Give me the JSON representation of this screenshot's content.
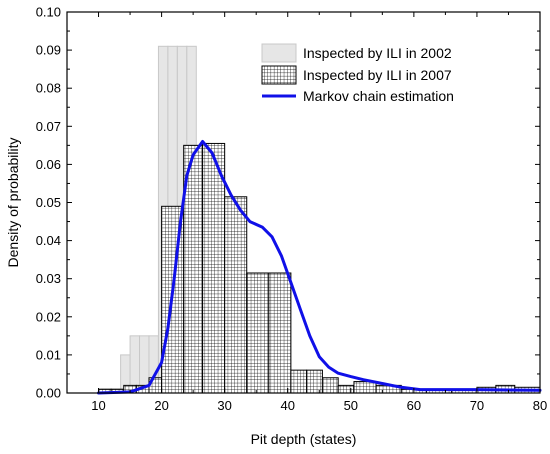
{
  "chart_data": {
    "type": "bar",
    "xlabel": "Pit depth (states)",
    "ylabel": "Density of probability",
    "xlim": [
      5,
      80
    ],
    "ylim": [
      0,
      0.1
    ],
    "x_ticks": [
      10,
      20,
      30,
      40,
      50,
      60,
      70,
      80
    ],
    "y_ticks": [
      0.0,
      0.01,
      0.02,
      0.03,
      0.04,
      0.05,
      0.06,
      0.07,
      0.08,
      0.09,
      0.1
    ],
    "legend_position": "top-right",
    "series": [
      {
        "name": "Inspected by ILI in 2002",
        "style": "light-gray-bars",
        "color": "#e6e6e6",
        "edge_color": "#c8c8c8",
        "bars": [
          {
            "x": 10.5,
            "width": 3.0,
            "value": 0.001
          },
          {
            "x": 13.5,
            "width": 1.5,
            "value": 0.01
          },
          {
            "x": 15.0,
            "width": 1.5,
            "value": 0.015
          },
          {
            "x": 16.5,
            "width": 1.5,
            "value": 0.015
          },
          {
            "x": 18.0,
            "width": 1.5,
            "value": 0.015
          },
          {
            "x": 19.5,
            "width": 1.5,
            "value": 0.091
          },
          {
            "x": 21.0,
            "width": 1.5,
            "value": 0.091
          },
          {
            "x": 22.5,
            "width": 1.5,
            "value": 0.091
          },
          {
            "x": 24.0,
            "width": 1.5,
            "value": 0.091
          }
        ]
      },
      {
        "name": "Inspected by ILI in 2007",
        "style": "hatched-grid-bars",
        "color": "#ffffff",
        "edge_color": "#000000",
        "bars": [
          {
            "x": 10.0,
            "width": 2.0,
            "value": 0.001
          },
          {
            "x": 12.0,
            "width": 2.0,
            "value": 0.001
          },
          {
            "x": 14.0,
            "width": 2.0,
            "value": 0.002
          },
          {
            "x": 16.0,
            "width": 2.0,
            "value": 0.002
          },
          {
            "x": 18.0,
            "width": 2.0,
            "value": 0.004
          },
          {
            "x": 20.0,
            "width": 3.5,
            "value": 0.049
          },
          {
            "x": 23.5,
            "width": 3.0,
            "value": 0.065
          },
          {
            "x": 26.5,
            "width": 3.5,
            "value": 0.0655
          },
          {
            "x": 30.0,
            "width": 3.5,
            "value": 0.0515
          },
          {
            "x": 33.5,
            "width": 3.5,
            "value": 0.0315
          },
          {
            "x": 37.0,
            "width": 3.5,
            "value": 0.0315
          },
          {
            "x": 40.5,
            "width": 2.5,
            "value": 0.006
          },
          {
            "x": 43.0,
            "width": 2.5,
            "value": 0.006
          },
          {
            "x": 45.5,
            "width": 2.5,
            "value": 0.004
          },
          {
            "x": 48.0,
            "width": 2.5,
            "value": 0.002
          },
          {
            "x": 50.5,
            "width": 3.5,
            "value": 0.003
          },
          {
            "x": 54.0,
            "width": 4.0,
            "value": 0.002
          },
          {
            "x": 58.0,
            "width": 4.0,
            "value": 0.001
          },
          {
            "x": 62.0,
            "width": 4.0,
            "value": 0.001
          },
          {
            "x": 66.0,
            "width": 4.0,
            "value": 0.001
          },
          {
            "x": 70.0,
            "width": 3.0,
            "value": 0.0015
          },
          {
            "x": 73.0,
            "width": 3.0,
            "value": 0.002
          },
          {
            "x": 76.0,
            "width": 4.0,
            "value": 0.0015
          }
        ]
      },
      {
        "name": "Markov chain estimation",
        "style": "line",
        "color": "#1010e8",
        "points": [
          [
            10,
            0.0
          ],
          [
            15,
            0.0003
          ],
          [
            18,
            0.002
          ],
          [
            20,
            0.008
          ],
          [
            21,
            0.017
          ],
          [
            22,
            0.03
          ],
          [
            23,
            0.045
          ],
          [
            24,
            0.057
          ],
          [
            25,
            0.0625
          ],
          [
            26.5,
            0.066
          ],
          [
            28,
            0.063
          ],
          [
            29.5,
            0.057
          ],
          [
            31,
            0.052
          ],
          [
            32.5,
            0.048
          ],
          [
            34,
            0.045
          ],
          [
            36,
            0.0435
          ],
          [
            37.5,
            0.041
          ],
          [
            39,
            0.036
          ],
          [
            40.5,
            0.029
          ],
          [
            42,
            0.022
          ],
          [
            43.5,
            0.015
          ],
          [
            45,
            0.0095
          ],
          [
            46.5,
            0.0068
          ],
          [
            48,
            0.0052
          ],
          [
            50,
            0.0043
          ],
          [
            52,
            0.0035
          ],
          [
            55,
            0.0025
          ],
          [
            58,
            0.0015
          ],
          [
            61,
            0.0009
          ],
          [
            65,
            0.0009
          ],
          [
            70,
            0.0009
          ],
          [
            75,
            0.0008
          ],
          [
            80,
            0.0007
          ]
        ]
      }
    ]
  }
}
